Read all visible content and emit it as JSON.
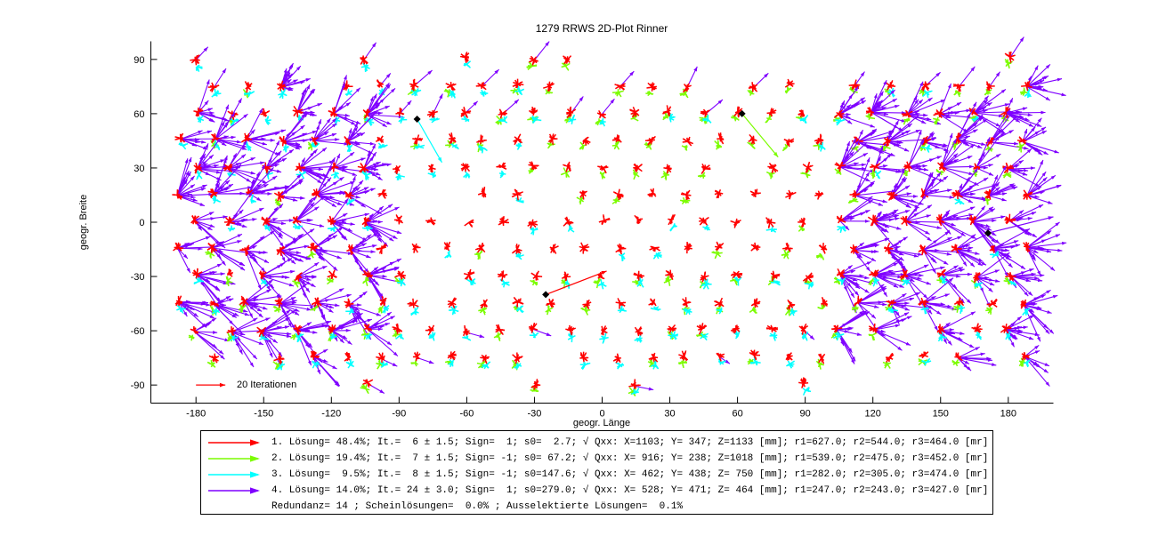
{
  "chart_data": {
    "type": "quiver",
    "title": "1279 RRWS 2D-Plot Rinner",
    "xlabel": "geogr. Länge",
    "ylabel": "geogr. Breite",
    "xlim": [
      -200,
      200
    ],
    "ylim": [
      -100,
      100
    ],
    "xticks": [
      -180,
      -150,
      -120,
      -90,
      -60,
      -30,
      0,
      30,
      60,
      90,
      120,
      150,
      180
    ],
    "yticks": [
      -90,
      -60,
      -30,
      0,
      30,
      60,
      90
    ],
    "grid": {
      "lat_min": -90,
      "lat_max": 90,
      "lat_step": 15,
      "lon_step": 15,
      "row_offset": 7.5,
      "note": "vector clusters of iteration arrows at ~15 deg geodesic grid points; red/green/cyan short-arrow blobs, violet long-arrow fans near |lon|>=100"
    },
    "colors": {
      "sol1": "#ff0000",
      "sol2": "#7cfc00",
      "sol3": "#00ffff",
      "sol4": "#7f00ff",
      "marker": "#000000",
      "axis": "#000000"
    },
    "scale_arrow": {
      "label": "20 Iterationen",
      "lat": -90,
      "lon_from": -180,
      "lon_to": -167
    },
    "solution_lines": [
      {
        "name": "solution-1-line",
        "color": "sol1",
        "from": [
          -25,
          -40
        ],
        "to": [
          2,
          -27
        ]
      },
      {
        "name": "solution-2-line",
        "color": "sol2",
        "from": [
          62,
          60
        ],
        "to": [
          78,
          36
        ]
      },
      {
        "name": "solution-3-line",
        "color": "sol3",
        "from": [
          -82,
          57
        ],
        "to": [
          -71,
          33
        ]
      },
      {
        "name": "solution-4-line",
        "color": "sol4",
        "from": [
          171,
          -6
        ],
        "to": [
          200,
          3
        ]
      }
    ]
  },
  "legend": {
    "rows": [
      {
        "color": "sol1",
        "text": "1. Lösung= 48.4%; It.=  6 ± 1.5; Sign=  1; s0=  2.7; √ Qxx: X=1103; Y= 347; Z=1133 [mm]; r1=627.0; r2=544.0; r3=464.0 [mr]"
      },
      {
        "color": "sol2",
        "text": "2. Lösung= 19.4%; It.=  7 ± 1.5; Sign= -1; s0= 67.2; √ Qxx: X= 916; Y= 238; Z=1018 [mm]; r1=539.0; r2=475.0; r3=452.0 [mr]"
      },
      {
        "color": "sol3",
        "text": "3. Lösung=  9.5%; It.=  8 ± 1.5; Sign= -1; s0=147.6; √ Qxx: X= 462; Y= 438; Z= 750 [mm]; r1=282.0; r2=305.0; r3=474.0 [mr]"
      },
      {
        "color": "sol4",
        "text": "4. Lösung= 14.0%; It.= 24 ± 3.0; Sign=  1; s0=279.0; √ Qxx: X= 528; Y= 471; Z= 464 [mm]; r1=247.0; r2=243.0; r3=427.0 [mr]"
      },
      {
        "color": null,
        "text": "Redundanz= 14 ; Scheinlösungen=  0.0% ; Ausselektierte Lösungen=  0.1%"
      }
    ]
  }
}
